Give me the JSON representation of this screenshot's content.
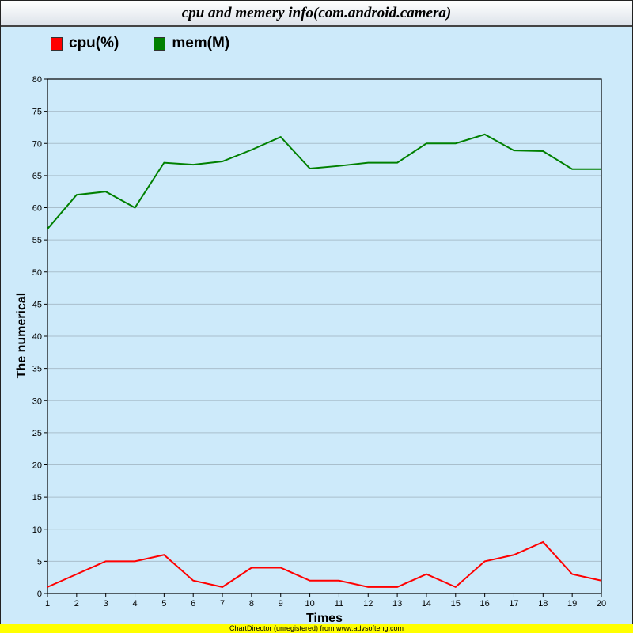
{
  "header": {
    "title": "cpu and memery info(com.android.camera)"
  },
  "legend": [
    {
      "label": "cpu(%)",
      "color": "#ff0000"
    },
    {
      "label": "mem(M)",
      "color": "#008000"
    }
  ],
  "axes": {
    "xlabel": "Times",
    "ylabel": "The numerical"
  },
  "footer": {
    "text": "ChartDirector (unregistered) from www.advsofteng.com"
  },
  "chart_data": {
    "type": "line",
    "title": "cpu and memery info(com.android.camera)",
    "xlabel": "Times",
    "ylabel": "The numerical",
    "x": [
      1,
      2,
      3,
      4,
      5,
      6,
      7,
      8,
      9,
      10,
      11,
      12,
      13,
      14,
      15,
      16,
      17,
      18,
      19,
      20
    ],
    "ylim": [
      0,
      80
    ],
    "yticks": [
      0,
      5,
      10,
      15,
      20,
      25,
      30,
      35,
      40,
      45,
      50,
      55,
      60,
      65,
      70,
      75,
      80
    ],
    "grid": true,
    "legend_position": "top-left",
    "series": [
      {
        "name": "cpu(%)",
        "color": "#ff0000",
        "values": [
          1,
          3,
          5,
          5,
          6,
          2,
          1,
          4,
          4,
          2,
          2,
          1,
          1,
          3,
          1,
          5,
          6,
          8,
          3,
          2
        ]
      },
      {
        "name": "mem(M)",
        "color": "#008000",
        "values": [
          56.7,
          62.0,
          62.5,
          60.0,
          67.0,
          66.7,
          67.2,
          69.0,
          71.0,
          66.1,
          66.5,
          67.0,
          67.0,
          70.0,
          70.0,
          71.4,
          68.9,
          68.8,
          66.0,
          66.0
        ]
      }
    ]
  }
}
